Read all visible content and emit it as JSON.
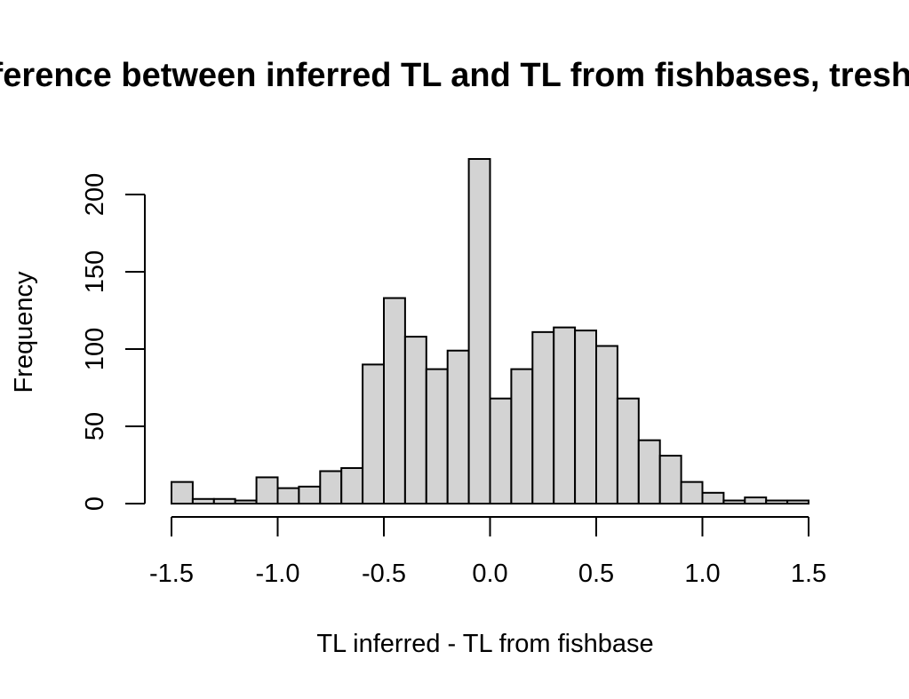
{
  "chart_data": {
    "type": "bar",
    "title": "Difference between inferred TL and TL from fishbases, treshold",
    "xlabel": "TL inferred - TL from fishbase",
    "ylabel": "Frequency",
    "xlim": [
      -1.5,
      1.5
    ],
    "ylim": [
      0,
      200
    ],
    "x_ticks": [
      -1.5,
      -1.0,
      -0.5,
      0.0,
      0.5,
      1.0,
      1.5
    ],
    "x_tick_labels": [
      "-1.5",
      "-1.0",
      "-0.5",
      "0.0",
      "0.5",
      "1.0",
      "1.5"
    ],
    "y_ticks": [
      0,
      50,
      100,
      150,
      200
    ],
    "y_tick_labels": [
      "0",
      "50",
      "100",
      "150",
      "200"
    ],
    "bin_width": 0.1,
    "bins": [
      {
        "start": -1.5,
        "end": -1.4,
        "count": 14
      },
      {
        "start": -1.4,
        "end": -1.3,
        "count": 3
      },
      {
        "start": -1.3,
        "end": -1.2,
        "count": 3
      },
      {
        "start": -1.2,
        "end": -1.1,
        "count": 2
      },
      {
        "start": -1.1,
        "end": -1.0,
        "count": 17
      },
      {
        "start": -1.0,
        "end": -0.9,
        "count": 10
      },
      {
        "start": -0.9,
        "end": -0.8,
        "count": 11
      },
      {
        "start": -0.8,
        "end": -0.7,
        "count": 21
      },
      {
        "start": -0.7,
        "end": -0.6,
        "count": 23
      },
      {
        "start": -0.6,
        "end": -0.5,
        "count": 90
      },
      {
        "start": -0.5,
        "end": -0.4,
        "count": 133
      },
      {
        "start": -0.4,
        "end": -0.3,
        "count": 108
      },
      {
        "start": -0.3,
        "end": -0.2,
        "count": 87
      },
      {
        "start": -0.2,
        "end": -0.1,
        "count": 99
      },
      {
        "start": -0.1,
        "end": 0.0,
        "count": 223
      },
      {
        "start": 0.0,
        "end": 0.1,
        "count": 68
      },
      {
        "start": 0.1,
        "end": 0.2,
        "count": 87
      },
      {
        "start": 0.2,
        "end": 0.3,
        "count": 111
      },
      {
        "start": 0.3,
        "end": 0.4,
        "count": 114
      },
      {
        "start": 0.4,
        "end": 0.5,
        "count": 112
      },
      {
        "start": 0.5,
        "end": 0.6,
        "count": 102
      },
      {
        "start": 0.6,
        "end": 0.7,
        "count": 68
      },
      {
        "start": 0.7,
        "end": 0.8,
        "count": 41
      },
      {
        "start": 0.8,
        "end": 0.9,
        "count": 31
      },
      {
        "start": 0.9,
        "end": 1.0,
        "count": 14
      },
      {
        "start": 1.0,
        "end": 1.1,
        "count": 7
      },
      {
        "start": 1.1,
        "end": 1.2,
        "count": 2
      },
      {
        "start": 1.2,
        "end": 1.3,
        "count": 4
      },
      {
        "start": 1.3,
        "end": 1.4,
        "count": 2
      },
      {
        "start": 1.4,
        "end": 1.5,
        "count": 2
      }
    ],
    "bar_fill": "#d3d3d3",
    "bar_stroke": "#000000",
    "grid": false,
    "legend": "none"
  }
}
